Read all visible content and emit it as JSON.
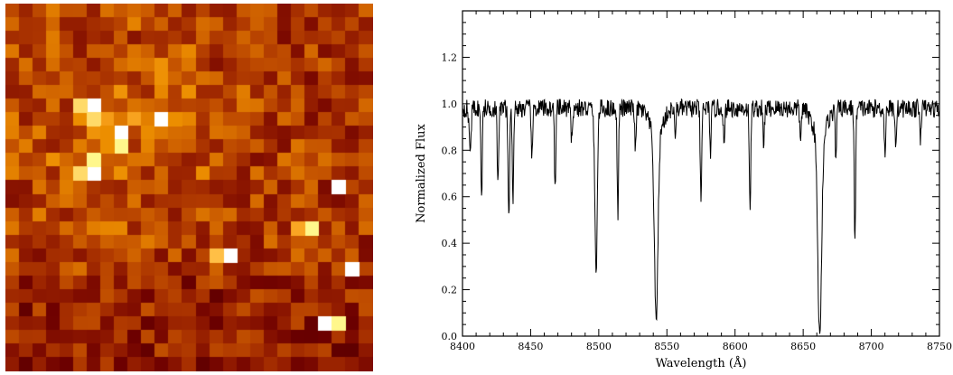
{
  "image_panel": {
    "description_colormap": "heat",
    "grid_size": 27,
    "colors": {
      "dark": "#241004",
      "mid": "#9a4a05",
      "bright": "#ff8a1c",
      "white": "#ffffff"
    }
  },
  "chart_data": {
    "type": "line",
    "title": "",
    "xlabel": "Wavelength (Å)",
    "ylabel": "Normalized Flux",
    "xlim": [
      8400,
      8750
    ],
    "ylim": [
      0.0,
      1.4
    ],
    "xticks": [
      8400,
      8450,
      8500,
      8550,
      8600,
      8650,
      8700,
      8750
    ],
    "yticks": [
      0.0,
      0.2,
      0.4,
      0.6,
      0.8,
      1.0,
      1.2
    ],
    "ytick_labels": [
      "0.0",
      "0.2",
      "0.4",
      "0.6",
      "0.8",
      "1.0",
      "1.2"
    ],
    "grid": false,
    "series": [
      {
        "continuum": 0.98,
        "noise": 0.04,
        "absorption_lines": [
          {
            "x": 8405,
            "depth": 0.1,
            "width": 0.6
          },
          {
            "x": 8406,
            "depth": 0.13,
            "width": 0.5
          },
          {
            "x": 8414,
            "depth": 0.4,
            "width": 0.5
          },
          {
            "x": 8426,
            "depth": 0.35,
            "width": 0.5
          },
          {
            "x": 8434,
            "depth": 0.45,
            "width": 0.6
          },
          {
            "x": 8437,
            "depth": 0.38,
            "width": 0.5
          },
          {
            "x": 8451,
            "depth": 0.22,
            "width": 0.5
          },
          {
            "x": 8468,
            "depth": 0.36,
            "width": 0.5
          },
          {
            "x": 8480,
            "depth": 0.15,
            "width": 0.5
          },
          {
            "x": 8498.0,
            "depth": 0.7,
            "width": 0.9
          },
          {
            "x": 8514,
            "depth": 0.45,
            "width": 0.5
          },
          {
            "x": 8527,
            "depth": 0.18,
            "width": 0.5
          },
          {
            "x": 8542.1,
            "depth": 0.79,
            "width": 1.3
          },
          {
            "x": 8556,
            "depth": 0.12,
            "width": 0.5
          },
          {
            "x": 8575,
            "depth": 0.43,
            "width": 0.5
          },
          {
            "x": 8582,
            "depth": 0.18,
            "width": 0.5
          },
          {
            "x": 8592,
            "depth": 0.18,
            "width": 0.5
          },
          {
            "x": 8611,
            "depth": 0.47,
            "width": 0.5
          },
          {
            "x": 8621,
            "depth": 0.17,
            "width": 0.5
          },
          {
            "x": 8648,
            "depth": 0.14,
            "width": 0.5
          },
          {
            "x": 8662.1,
            "depth": 0.86,
            "width": 1.4
          },
          {
            "x": 8674,
            "depth": 0.2,
            "width": 0.5
          },
          {
            "x": 8688,
            "depth": 0.6,
            "width": 0.5
          },
          {
            "x": 8710,
            "depth": 0.2,
            "width": 0.5
          },
          {
            "x": 8718,
            "depth": 0.15,
            "width": 0.5
          },
          {
            "x": 8736,
            "depth": 0.12,
            "width": 0.5
          }
        ]
      }
    ]
  }
}
